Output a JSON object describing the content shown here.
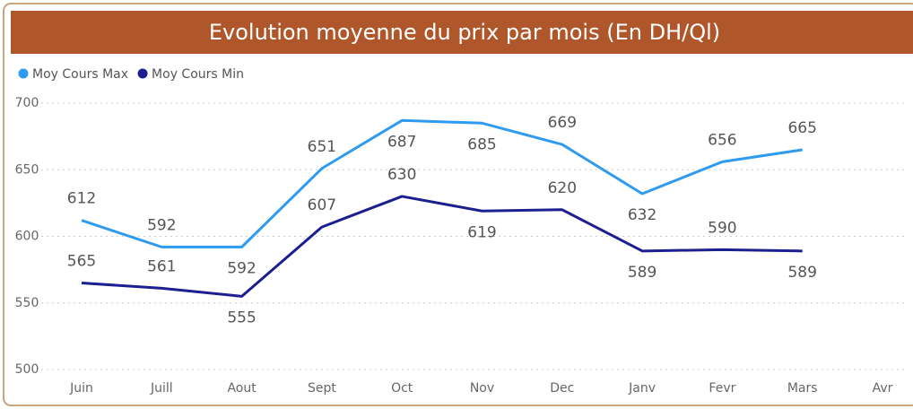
{
  "chart_data": {
    "type": "line",
    "title": "Evolution moyenne du prix par mois (En DH/Ql)",
    "categories": [
      "Juin",
      "Juill",
      "Aout",
      "Sept",
      "Oct",
      "Nov",
      "Dec",
      "Janv",
      "Fevr",
      "Mars",
      "Avr"
    ],
    "series": [
      {
        "name": "Moy Cours Max",
        "color": "#2e9bf0",
        "values": [
          612,
          592,
          592,
          651,
          687,
          685,
          669,
          632,
          656,
          665,
          null
        ]
      },
      {
        "name": "Moy Cours Min",
        "color": "#1c1f8f",
        "values": [
          565,
          561,
          555,
          607,
          630,
          619,
          620,
          589,
          590,
          589,
          null
        ]
      }
    ],
    "ylim": [
      500,
      700
    ],
    "yticks": [
      500,
      550,
      600,
      650,
      700
    ],
    "grid": true,
    "legend": "top-left"
  }
}
